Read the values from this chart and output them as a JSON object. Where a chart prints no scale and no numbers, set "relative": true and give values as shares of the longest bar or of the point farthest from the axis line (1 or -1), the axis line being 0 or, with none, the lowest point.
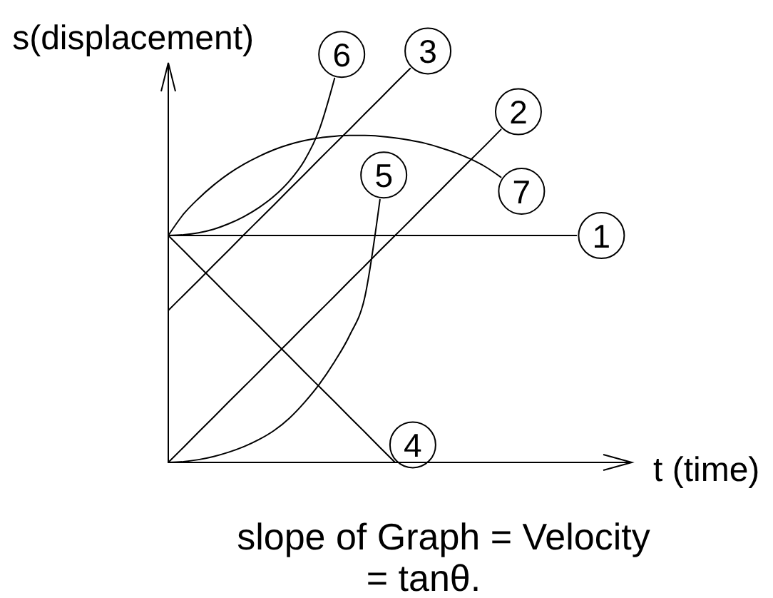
{
  "chart_data": {
    "type": "line",
    "relative": true,
    "xlabel": "t (time)",
    "ylabel": "s(displacement)",
    "annotations": [
      "slope of Graph = Velocity",
      "= tanθ."
    ],
    "categories": [
      null,
      null,
      null,
      null,
      null,
      null,
      null,
      null,
      null,
      null,
      null,
      null,
      null,
      null,
      null,
      null,
      null,
      null,
      null,
      null,
      null,
      null,
      null,
      null,
      null,
      null,
      null,
      null
    ],
    "series": [
      {
        "name": "1",
        "color": "#000000",
        "values": [
          0.576,
          0.576,
          0.576,
          0.576,
          0.576,
          0.576,
          0.576,
          0.576,
          0.576,
          0.576,
          0.576,
          0.576,
          0.576,
          0.576,
          0.576,
          0.576,
          0.576,
          0.576,
          0.576,
          0.576,
          0.576,
          0.576,
          0.576,
          0.576,
          0.576,
          0.576,
          0.576,
          0.576
        ]
      },
      {
        "name": "2",
        "color": "#000000",
        "values": [
          0,
          0.038,
          0.077,
          0.115,
          0.154,
          0.192,
          0.23,
          0.269,
          0.307,
          0.346,
          0.384,
          0.422,
          0.461,
          0.499,
          0.538,
          0.576,
          0.614,
          0.653,
          0.691,
          0.73,
          0.768,
          0.806,
          0.845,
          null,
          null,
          null,
          null,
          null
        ]
      },
      {
        "name": "3",
        "color": "#000000",
        "values": [
          0.386,
          0.424,
          0.462,
          0.501,
          0.539,
          0.578,
          0.616,
          0.654,
          0.693,
          0.731,
          0.77,
          0.808,
          0.846,
          0.885,
          0.923,
          0.962,
          1,
          null,
          null,
          null,
          null,
          null,
          null,
          null,
          null,
          null,
          null,
          null
        ]
      },
      {
        "name": "4",
        "color": "#000000",
        "values": [
          0.576,
          0.538,
          0.499,
          0.461,
          0.422,
          0.384,
          0.346,
          0.307,
          0.269,
          0.23,
          0.192,
          0.154,
          0.115,
          0.077,
          0.038,
          0,
          null,
          null,
          null,
          null,
          null,
          null,
          null,
          null,
          null,
          null,
          null,
          null
        ]
      },
      {
        "name": "5",
        "color": "#000000",
        "values": [
          0,
          0.002,
          0.007,
          0.015,
          0.026,
          0.04,
          0.058,
          0.081,
          0.112,
          0.152,
          0.199,
          0.256,
          0.323,
          0.42,
          0.667,
          null,
          null,
          null,
          null,
          null,
          null,
          null,
          null,
          null,
          null,
          null,
          null,
          null
        ]
      },
      {
        "name": "6",
        "color": "#000000",
        "values": [
          0.576,
          0.578,
          0.583,
          0.592,
          0.606,
          0.624,
          0.647,
          0.676,
          0.714,
          0.766,
          0.846,
          0.975,
          null,
          null,
          null,
          null,
          null,
          null,
          null,
          null,
          null,
          null,
          null,
          null,
          null,
          null,
          null,
          null
        ]
      },
      {
        "name": "7",
        "color": "#000000",
        "values": [
          0.576,
          0.63,
          0.67,
          0.704,
          0.733,
          0.757,
          0.777,
          0.794,
          0.807,
          0.817,
          0.824,
          0.828,
          0.83,
          0.83,
          0.828,
          0.824,
          0.818,
          0.81,
          0.799,
          0.786,
          0.77,
          0.75,
          0.724,
          null,
          null,
          null,
          null,
          null
        ]
      }
    ]
  }
}
